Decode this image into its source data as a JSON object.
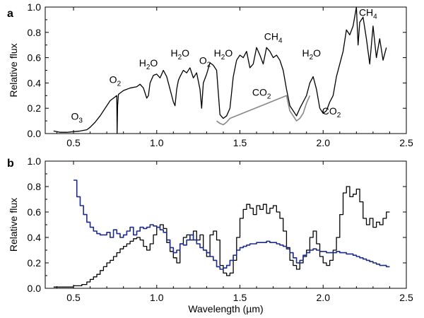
{
  "chart_data": [
    {
      "panel": "a",
      "type": "line",
      "title": "",
      "xlabel": "",
      "ylabel": "Relative flux",
      "xlim": [
        0.33,
        2.5
      ],
      "ylim": [
        0,
        1.0
      ],
      "xticks": [
        0.5,
        1.0,
        1.5,
        2.0,
        2.5
      ],
      "xtick_labels": [
        "0.5",
        "1.0",
        "1.5",
        "2.0",
        "2.5"
      ],
      "yticks": [
        0.0,
        0.2,
        0.4,
        0.6,
        0.8,
        1.0
      ],
      "ytick_labels": [
        "0.0",
        "0.2",
        "0.4",
        "0.6",
        "0.8",
        "1.0"
      ],
      "grid": false,
      "annotations": [
        {
          "text": "O3",
          "base": "O",
          "sub": "3",
          "x": 0.52,
          "y": 0.11
        },
        {
          "text": "O2",
          "base": "O",
          "sub": "2",
          "x": 0.75,
          "y": 0.4
        },
        {
          "text": "H2O",
          "base": "H",
          "sub": "2",
          "tail": "O",
          "x": 0.95,
          "y": 0.53
        },
        {
          "text": "H2O",
          "base": "H",
          "sub": "2",
          "tail": "O",
          "x": 1.14,
          "y": 0.61
        },
        {
          "text": "O2",
          "base": "O",
          "sub": "2",
          "x": 1.29,
          "y": 0.55
        },
        {
          "text": "H2O",
          "base": "H",
          "sub": "2",
          "tail": "O",
          "x": 1.4,
          "y": 0.61
        },
        {
          "text": "CH4",
          "base": "CH",
          "sub": "4",
          "x": 1.7,
          "y": 0.74
        },
        {
          "text": "CO2",
          "base": "CO",
          "sub": "2",
          "x": 1.63,
          "y": 0.3
        },
        {
          "text": "H2O",
          "base": "H",
          "sub": "2",
          "tail": "O",
          "x": 1.93,
          "y": 0.61
        },
        {
          "text": "CO2",
          "base": "CO",
          "sub": "2",
          "x": 2.05,
          "y": 0.15
        },
        {
          "text": "CH4",
          "base": "CH",
          "sub": "4",
          "x": 2.27,
          "y": 0.93
        }
      ],
      "series": [
        {
          "color": "#000000",
          "x": [
            0.38,
            0.42,
            0.46,
            0.5,
            0.54,
            0.58,
            0.6,
            0.63,
            0.66,
            0.68,
            0.69,
            0.7,
            0.72,
            0.74,
            0.76,
            0.762,
            0.765,
            0.77,
            0.8,
            0.84,
            0.88,
            0.9,
            0.92,
            0.94,
            0.95,
            0.96,
            0.98,
            1.0,
            1.02,
            1.04,
            1.06,
            1.08,
            1.1,
            1.11,
            1.12,
            1.13,
            1.14,
            1.16,
            1.18,
            1.2,
            1.22,
            1.24,
            1.26,
            1.27,
            1.28,
            1.3,
            1.32,
            1.34,
            1.36,
            1.38,
            1.4,
            1.42,
            1.44,
            1.46,
            1.48,
            1.5,
            1.52,
            1.54,
            1.56,
            1.58,
            1.6,
            1.62,
            1.64,
            1.66,
            1.68,
            1.7,
            1.72,
            1.74,
            1.76,
            1.78,
            1.8,
            1.82,
            1.84,
            1.86,
            1.88,
            1.9,
            1.92,
            1.94,
            1.96,
            1.98,
            2.0,
            2.02,
            2.04,
            2.06,
            2.08,
            2.1,
            2.12,
            2.14,
            2.16,
            2.18,
            2.2,
            2.21,
            2.22,
            2.24,
            2.26,
            2.28,
            2.3,
            2.32,
            2.34,
            2.36,
            2.38
          ],
          "y": [
            0.02,
            0.01,
            0.01,
            0.015,
            0.02,
            0.03,
            0.05,
            0.09,
            0.14,
            0.18,
            0.2,
            0.22,
            0.26,
            0.28,
            0.3,
            0.0,
            0.22,
            0.31,
            0.34,
            0.36,
            0.37,
            0.39,
            0.36,
            0.28,
            0.3,
            0.4,
            0.46,
            0.47,
            0.44,
            0.5,
            0.45,
            0.35,
            0.25,
            0.22,
            0.35,
            0.42,
            0.45,
            0.5,
            0.48,
            0.52,
            0.44,
            0.48,
            0.35,
            0.2,
            0.4,
            0.47,
            0.56,
            0.54,
            0.5,
            0.15,
            0.12,
            0.14,
            0.2,
            0.45,
            0.58,
            0.62,
            0.6,
            0.65,
            0.52,
            0.55,
            0.68,
            0.62,
            0.55,
            0.68,
            0.65,
            0.6,
            0.62,
            0.58,
            0.5,
            0.35,
            0.22,
            0.18,
            0.14,
            0.2,
            0.25,
            0.3,
            0.4,
            0.45,
            0.35,
            0.2,
            0.16,
            0.18,
            0.25,
            0.3,
            0.45,
            0.55,
            0.65,
            0.82,
            0.78,
            0.85,
            1.0,
            0.7,
            0.88,
            0.92,
            0.75,
            0.55,
            0.85,
            0.6,
            0.75,
            0.58,
            0.68
          ]
        },
        {
          "color": "#888888",
          "x": [
            1.36,
            1.38,
            1.4,
            1.42,
            1.44,
            1.78,
            1.8,
            1.82,
            1.84,
            1.86,
            1.88,
            1.9,
            1.92
          ],
          "y": [
            0.1,
            0.08,
            0.07,
            0.09,
            0.12,
            0.3,
            0.18,
            0.14,
            0.1,
            0.12,
            0.16,
            0.24,
            0.3
          ]
        }
      ]
    },
    {
      "panel": "b",
      "type": "step",
      "title": "",
      "xlabel": "Wavelength (µm)",
      "ylabel": "Relative flux",
      "xlim": [
        0.33,
        2.5
      ],
      "ylim": [
        0,
        1.0
      ],
      "xticks": [
        0.5,
        1.0,
        1.5,
        2.0,
        2.5
      ],
      "xtick_labels": [
        "0.5",
        "1.0",
        "1.5",
        "2.0",
        "2.5"
      ],
      "yticks": [
        0.0,
        0.2,
        0.4,
        0.6,
        0.8,
        1.0
      ],
      "ytick_labels": [
        "0.0",
        "0.2",
        "0.4",
        "0.6",
        "0.8",
        "1.0"
      ],
      "grid": false,
      "series": [
        {
          "color": "#000000",
          "x": [
            0.38,
            0.5,
            0.55,
            0.58,
            0.6,
            0.62,
            0.64,
            0.66,
            0.68,
            0.7,
            0.72,
            0.74,
            0.76,
            0.78,
            0.8,
            0.82,
            0.84,
            0.86,
            0.88,
            0.9,
            0.92,
            0.94,
            0.96,
            0.98,
            1.0,
            1.02,
            1.04,
            1.06,
            1.08,
            1.1,
            1.12,
            1.14,
            1.16,
            1.18,
            1.2,
            1.22,
            1.24,
            1.26,
            1.28,
            1.3,
            1.32,
            1.34,
            1.36,
            1.38,
            1.4,
            1.42,
            1.44,
            1.46,
            1.48,
            1.5,
            1.52,
            1.54,
            1.56,
            1.58,
            1.6,
            1.62,
            1.64,
            1.66,
            1.68,
            1.7,
            1.72,
            1.74,
            1.76,
            1.78,
            1.8,
            1.82,
            1.84,
            1.86,
            1.88,
            1.9,
            1.92,
            1.94,
            1.96,
            1.98,
            2.0,
            2.02,
            2.04,
            2.06,
            2.08,
            2.1,
            2.12,
            2.14,
            2.16,
            2.18,
            2.2,
            2.22,
            2.24,
            2.26,
            2.28,
            2.3,
            2.32,
            2.34,
            2.36,
            2.38
          ],
          "y": [
            0.01,
            0.02,
            0.03,
            0.05,
            0.07,
            0.09,
            0.11,
            0.14,
            0.17,
            0.2,
            0.22,
            0.25,
            0.28,
            0.31,
            0.33,
            0.35,
            0.37,
            0.39,
            0.4,
            0.38,
            0.33,
            0.3,
            0.35,
            0.42,
            0.48,
            0.5,
            0.47,
            0.36,
            0.29,
            0.24,
            0.2,
            0.35,
            0.4,
            0.42,
            0.38,
            0.45,
            0.38,
            0.42,
            0.3,
            0.25,
            0.42,
            0.45,
            0.38,
            0.18,
            0.12,
            0.1,
            0.12,
            0.22,
            0.4,
            0.55,
            0.62,
            0.66,
            0.63,
            0.58,
            0.65,
            0.62,
            0.66,
            0.59,
            0.63,
            0.65,
            0.6,
            0.55,
            0.45,
            0.32,
            0.22,
            0.18,
            0.15,
            0.2,
            0.25,
            0.3,
            0.4,
            0.45,
            0.35,
            0.25,
            0.2,
            0.18,
            0.22,
            0.3,
            0.4,
            0.58,
            0.75,
            0.8,
            0.72,
            0.74,
            0.78,
            0.68,
            0.55,
            0.5,
            0.55,
            0.48,
            0.52,
            0.5,
            0.55,
            0.6
          ]
        },
        {
          "color": "#1a2a8a",
          "x": [
            0.5,
            0.52,
            0.54,
            0.56,
            0.58,
            0.6,
            0.62,
            0.64,
            0.66,
            0.68,
            0.7,
            0.72,
            0.74,
            0.76,
            0.78,
            0.8,
            0.82,
            0.84,
            0.86,
            0.88,
            0.9,
            0.92,
            0.94,
            0.96,
            0.98,
            1.0,
            1.02,
            1.04,
            1.06,
            1.08,
            1.1,
            1.12,
            1.14,
            1.16,
            1.18,
            1.2,
            1.22,
            1.24,
            1.26,
            1.28,
            1.3,
            1.32,
            1.34,
            1.36,
            1.38,
            1.4,
            1.42,
            1.44,
            1.46,
            1.48,
            1.5,
            1.52,
            1.54,
            1.56,
            1.58,
            1.6,
            1.62,
            1.64,
            1.66,
            1.68,
            1.7,
            1.72,
            1.74,
            1.76,
            1.78,
            1.8,
            1.82,
            1.84,
            1.86,
            1.88,
            1.9,
            1.92,
            1.94,
            1.96,
            1.98,
            2.0,
            2.02,
            2.04,
            2.06,
            2.08,
            2.1,
            2.12,
            2.14,
            2.16,
            2.18,
            2.2,
            2.22,
            2.24,
            2.26,
            2.28,
            2.3,
            2.32,
            2.34,
            2.36,
            2.38
          ],
          "y": [
            0.85,
            0.72,
            0.65,
            0.58,
            0.52,
            0.48,
            0.45,
            0.43,
            0.42,
            0.42,
            0.44,
            0.4,
            0.46,
            0.43,
            0.4,
            0.42,
            0.45,
            0.48,
            0.42,
            0.45,
            0.48,
            0.47,
            0.48,
            0.5,
            0.49,
            0.48,
            0.46,
            0.44,
            0.38,
            0.32,
            0.28,
            0.3,
            0.35,
            0.34,
            0.38,
            0.42,
            0.38,
            0.35,
            0.32,
            0.3,
            0.28,
            0.25,
            0.22,
            0.17,
            0.15,
            0.16,
            0.18,
            0.22,
            0.26,
            0.3,
            0.32,
            0.33,
            0.34,
            0.35,
            0.35,
            0.36,
            0.36,
            0.36,
            0.37,
            0.36,
            0.36,
            0.35,
            0.34,
            0.33,
            0.31,
            0.28,
            0.24,
            0.2,
            0.22,
            0.26,
            0.28,
            0.3,
            0.31,
            0.3,
            0.29,
            0.29,
            0.28,
            0.28,
            0.28,
            0.29,
            0.28,
            0.28,
            0.27,
            0.27,
            0.26,
            0.25,
            0.24,
            0.23,
            0.22,
            0.21,
            0.2,
            0.19,
            0.18,
            0.18,
            0.17
          ]
        }
      ]
    }
  ]
}
